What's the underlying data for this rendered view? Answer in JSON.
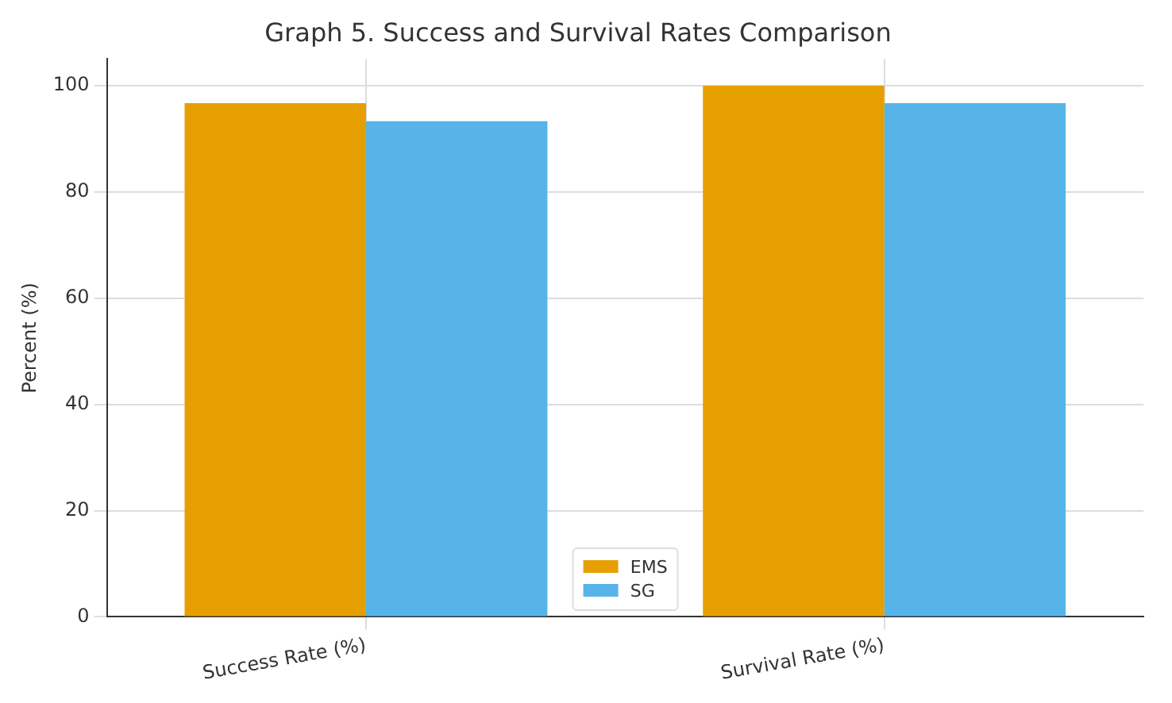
{
  "chart_data": {
    "type": "bar",
    "title": "Graph 5. Success and Survival Rates Comparison",
    "ylabel": "Percent (%)",
    "categories": [
      "Success Rate (%)",
      "Survival Rate (%)"
    ],
    "series": [
      {
        "name": "EMS",
        "color": "#e69f00",
        "values": [
          96.7,
          100
        ]
      },
      {
        "name": "SG",
        "color": "#56b4e9",
        "values": [
          93.3,
          96.7
        ]
      }
    ],
    "ylim": [
      0,
      105
    ],
    "yticks": [
      0,
      20,
      40,
      60,
      80,
      100
    ],
    "grid": true,
    "legend": "bottom"
  }
}
